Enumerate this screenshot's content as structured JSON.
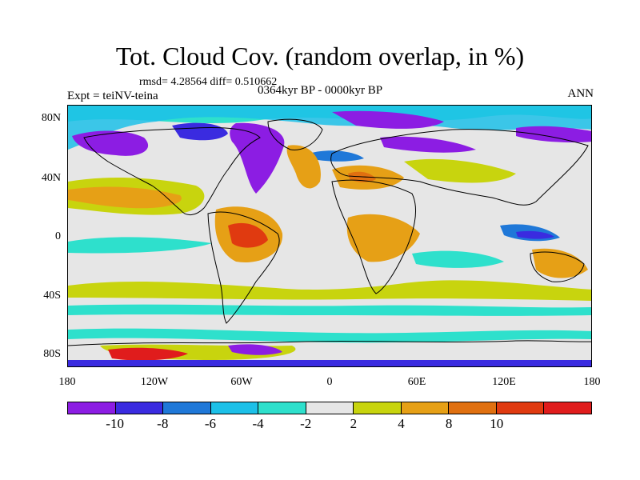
{
  "title": "Tot. Cloud Cov. (random overlap, in %)",
  "stats": "rmsd= 4.28564 diff= 0.510662",
  "experiment": "Expt = teiNV-teina",
  "period": "0364kyr BP - 0000kyr BP",
  "season": "ANN",
  "lat_labels": [
    "80N",
    "40N",
    "0",
    "40S",
    "80S"
  ],
  "lon_labels": [
    "180",
    "120W",
    "60W",
    "0",
    "60E",
    "120E",
    "180"
  ],
  "colorbar": {
    "colors": [
      "#8c1de3",
      "#3a2be0",
      "#1f78d8",
      "#1cc0e8",
      "#2ee0cc",
      "#e6e6e6",
      "#c8d40e",
      "#e6a016",
      "#e07010",
      "#e03a10",
      "#e01c1c"
    ],
    "labels": [
      "-10",
      "-8",
      "-6",
      "-4",
      "-2",
      "2",
      "4",
      "8",
      "10"
    ]
  },
  "map_colors": {
    "land_line": "#000000",
    "background": "#e6e6e6"
  }
}
